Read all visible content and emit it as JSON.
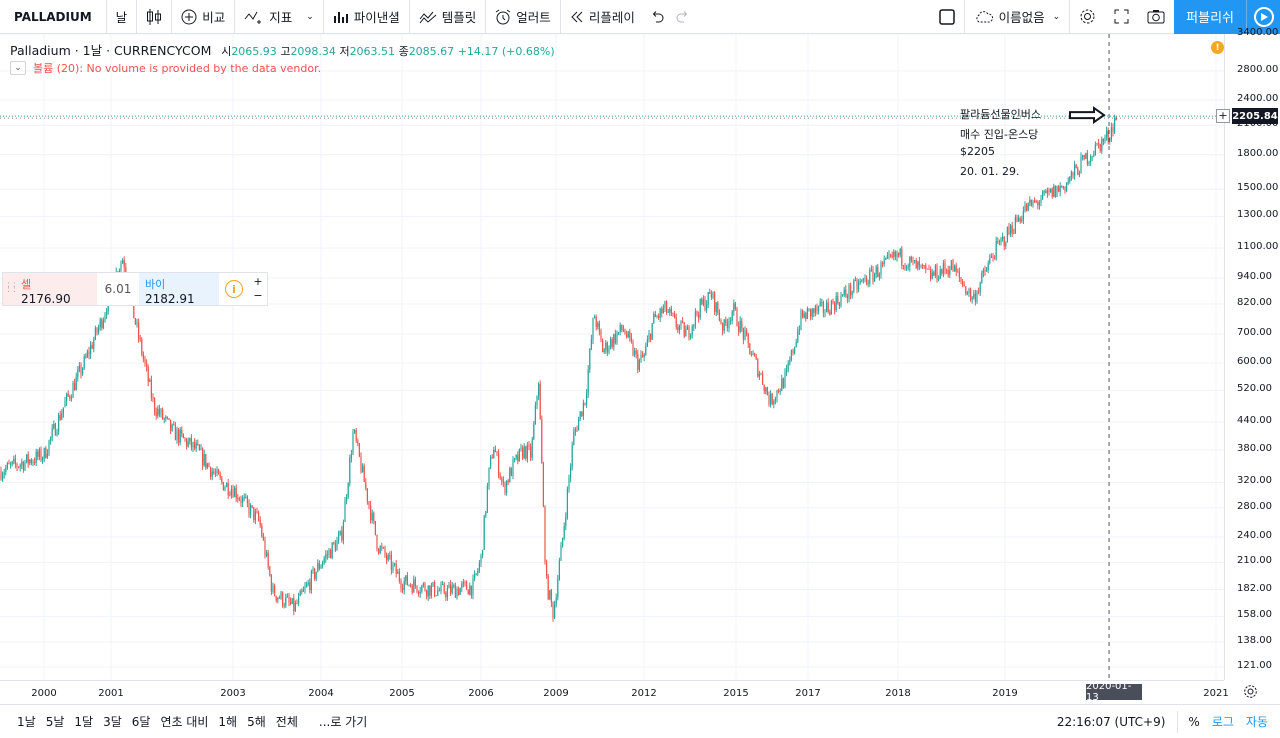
{
  "toolbar": {
    "symbol": "PALLADIUM",
    "interval": "날",
    "compare": "비교",
    "indicators": "지표",
    "financials": "파이낸셜",
    "templates": "템플릿",
    "alert": "얼러트",
    "replay": "리플레이",
    "layout_name": "이름없음",
    "publish": "퍼블리쉬"
  },
  "legend": {
    "name": "Palladium · 1날 · CURRENCYCOM",
    "open_label": "시",
    "open": "2065.93",
    "high_label": "고",
    "high": "2098.34",
    "low_label": "저",
    "low": "2063.51",
    "close_label": "종",
    "close": "2085.67",
    "change": "+14.17 (+0.68%)",
    "volume_note": "볼륨 (20): No volume is provided by the data vendor."
  },
  "trade": {
    "sell_label": "셀",
    "sell_price": "2176.90",
    "spread": "6.01",
    "buy_label": "바이",
    "buy_price": "2182.91",
    "info": "i",
    "plus": "+",
    "minus": "−"
  },
  "annotation": {
    "line1": "팔라듐선물인버스",
    "line2": "매수 진입-온스당",
    "line3": "$2205",
    "line4": "20. 01. 29."
  },
  "price_axis": {
    "ticks": [
      "3400.00",
      "2800.00",
      "2400.00",
      "2100.00",
      "1800.00",
      "1500.00",
      "1300.00",
      "1100.00",
      "940.00",
      "820.00",
      "700.00",
      "600.00",
      "520.00",
      "440.00",
      "380.00",
      "320.00",
      "280.00",
      "240.00",
      "210.00",
      "182.00",
      "158.00",
      "138.00",
      "121.00"
    ],
    "current_price": "2205.84",
    "alert_icon": "!"
  },
  "time_axis": {
    "ticks": [
      "2000",
      "2001",
      "2003",
      "2004",
      "2005",
      "2006",
      "2009",
      "2012",
      "2015",
      "2017",
      "2018",
      "2019",
      "2021"
    ],
    "cursor_date": "2020-01-13"
  },
  "bottom_bar": {
    "ranges": [
      "1날",
      "5날",
      "1달",
      "3달",
      "6달",
      "연초 대비",
      "1해",
      "5해",
      "전체"
    ],
    "goto": "...로 가기",
    "clock": "22:16:07 (UTC+9)",
    "percent": "%",
    "log": "로그",
    "auto": "자동"
  },
  "chart_data": {
    "type": "candlestick",
    "title": "Palladium · 1D · CURRENCYCOM",
    "scale": "log",
    "ylim": [
      115,
      3500
    ],
    "x": [
      1999.5,
      2000.0,
      2000.3,
      2000.6,
      2000.9,
      2001.0,
      2001.2,
      2001.35,
      2001.7,
      2002.0,
      2002.4,
      2002.8,
      2003.0,
      2003.3,
      2003.45,
      2003.7,
      2004.0,
      2004.25,
      2004.4,
      2004.7,
      2005.0,
      2005.5,
      2005.9,
      2006.3,
      2006.5,
      2006.9,
      2007.3,
      2007.7,
      2008.0,
      2008.2,
      2008.3,
      2008.6,
      2008.9,
      2009.2,
      2009.6,
      2010.0,
      2010.3,
      2010.6,
      2011.1,
      2011.3,
      2011.8,
      2012.0,
      2012.3,
      2012.7,
      2013.0,
      2013.4,
      2013.8,
      2014.2,
      2014.6,
      2014.9,
      2015.4,
      2015.7,
      2015.95,
      2016.4,
      2016.8,
      2017.2,
      2017.7,
      2018.0,
      2018.3,
      2018.5,
      2018.7,
      2018.9,
      2019.2,
      2019.6,
      2019.8,
      2020.05,
      2020.12
    ],
    "y": [
      340,
      370,
      480,
      600,
      780,
      900,
      1050,
      800,
      480,
      420,
      380,
      320,
      310,
      260,
      180,
      165,
      210,
      240,
      420,
      230,
      190,
      180,
      185,
      330,
      390,
      310,
      350,
      380,
      370,
      480,
      560,
      190,
      160,
      230,
      410,
      500,
      780,
      640,
      700,
      720,
      600,
      620,
      750,
      800,
      740,
      700,
      800,
      860,
      720,
      800,
      640,
      560,
      490,
      560,
      760,
      800,
      950,
      1060,
      950,
      1000,
      840,
      1080,
      1350,
      1530,
      1750,
      2000,
      2206
    ]
  }
}
